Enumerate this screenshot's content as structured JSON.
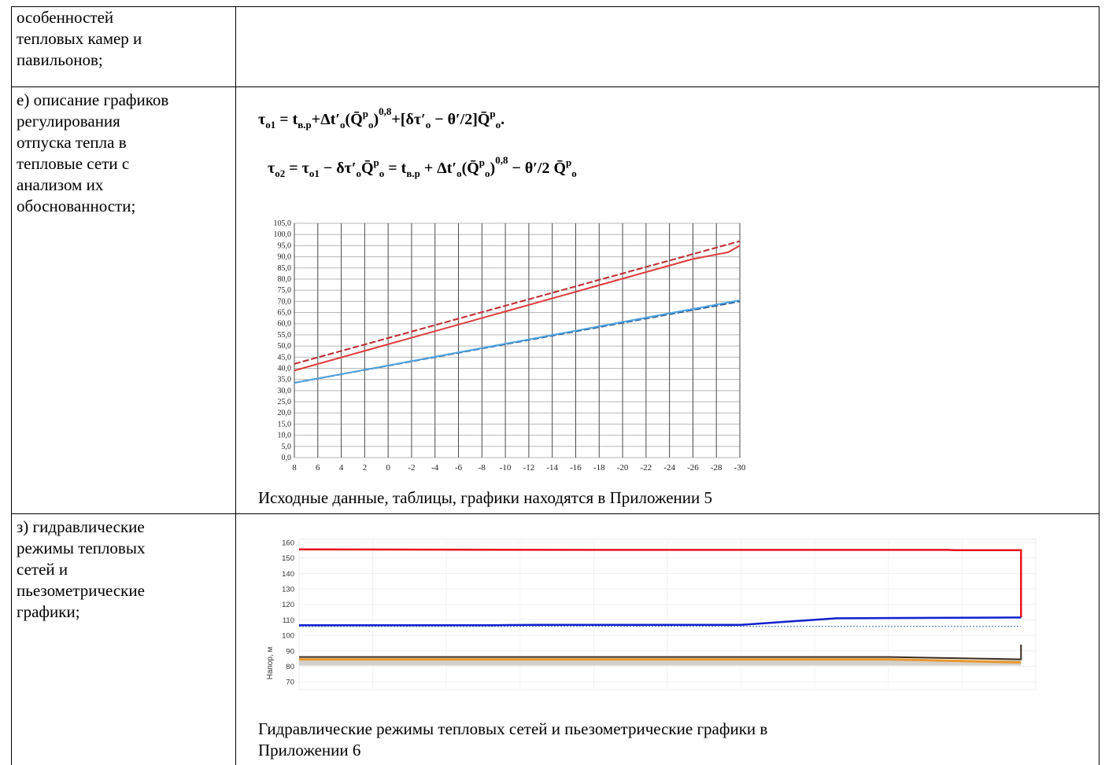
{
  "rows": [
    {
      "label_lines": [
        "особенностей",
        "тепловых камер и",
        "павильонов;"
      ]
    },
    {
      "label_lines": [
        "е) описание графиков",
        "регулирования",
        "отпуска тепла в",
        "тепловые сети с",
        "анализом их",
        "обоснованности;"
      ],
      "formula_1": "τ₀₁ = tв.р + Δt′₀(Q̄ᵖ₀)^0,8 + [δτ′₀ − θ′/2]Q̄ᵖ₀.",
      "formula_2": "τ₀₂ = τ₀₁ − δτ′₀Q̄ᵖ₀ = tв.р + Δt′₀(Q̄ᵖ₀)^0,8 − θ′/2 Q̄ᵖ₀",
      "caption": "Исходные данные, таблицы, графики находятся в Приложении 5"
    },
    {
      "label_lines": [
        "з) гидравлические",
        "режимы тепловых",
        "сетей и",
        "пьезометрические",
        "графики;"
      ],
      "caption_lines": [
        "Гидравлические режимы тепловых сетей и пьезометрические графики  в",
        "Приложении 6"
      ]
    }
  ],
  "chart_data": [
    {
      "type": "line",
      "title": "",
      "xlabel": "",
      "ylabel": "",
      "x": [
        8,
        6,
        4,
        2,
        0,
        -2,
        -4,
        -6,
        -8,
        -10,
        -12,
        -14,
        -16,
        -18,
        -20,
        -22,
        -24,
        -26,
        -28,
        -30
      ],
      "x_tick_labels": [
        "8",
        "6",
        "4",
        "2",
        "0",
        "-2",
        "-4",
        "-6",
        "-8",
        "-10",
        "-12",
        "-14",
        "-16",
        "-18",
        "-20",
        "-22",
        "-24",
        "-26",
        "-28",
        "-30"
      ],
      "y_tick_labels": [
        "0,0",
        "5,0",
        "10,0",
        "15,0",
        "20,0",
        "25,0",
        "30,0",
        "35,0",
        "40,0",
        "45,0",
        "50,0",
        "55,0",
        "60,0",
        "65,0",
        "70,0",
        "75,0",
        "80,0",
        "85,0",
        "90,0",
        "95,0",
        "100,0",
        "105,0"
      ],
      "ylim": [
        0,
        105
      ],
      "grid": true,
      "series": [
        {
          "color": "#c0282f",
          "dash": true,
          "points": [
            [
              8,
              42
            ],
            [
              -30,
              97
            ]
          ]
        },
        {
          "color": "#e03a3a",
          "dash": false,
          "points": [
            [
              8,
              39
            ],
            [
              -26,
              89
            ],
            [
              -28,
              91
            ],
            [
              -29,
              92
            ],
            [
              -30,
              95
            ]
          ]
        },
        {
          "color": "#1f4e8c",
          "dash": true,
          "points": [
            [
              8,
              33.5
            ],
            [
              -30,
              70
            ]
          ]
        },
        {
          "color": "#4fa3e0",
          "dash": false,
          "points": [
            [
              8,
              33.5
            ],
            [
              -30,
              70.5
            ]
          ]
        }
      ]
    },
    {
      "type": "line",
      "title": "",
      "xlabel": "",
      "ylabel": "Напор, м",
      "y_tick_labels": [
        "70",
        "80",
        "90",
        "100",
        "110",
        "120",
        "130",
        "140",
        "150",
        "160"
      ],
      "ylim": [
        65,
        162
      ],
      "xlim": [
        0,
        100
      ],
      "grid": true,
      "series": [
        {
          "color": "#e8101c",
          "width": 2.5,
          "points": [
            [
              0,
              155.5
            ],
            [
              40,
              155.2
            ],
            [
              88,
              155.2
            ],
            [
              89,
              155
            ],
            [
              98,
              155
            ],
            [
              98,
              111.5
            ]
          ]
        },
        {
          "color": "#1020d0",
          "width": 2.5,
          "points": [
            [
              0,
              106.5
            ],
            [
              26,
              106.5
            ],
            [
              32,
              106.8
            ],
            [
              60,
              106.8
            ],
            [
              73,
              111
            ],
            [
              98,
              111.5
            ]
          ]
        },
        {
          "color": "#3a6ea8",
          "width": 1,
          "dash": true,
          "points": [
            [
              0,
              105.8
            ],
            [
              98,
              105.8
            ]
          ]
        },
        {
          "color": "#3a2a20",
          "width": 2,
          "points": [
            [
              0,
              86
            ],
            [
              80,
              86
            ],
            [
              98,
              84.5
            ],
            [
              98,
              94
            ]
          ]
        },
        {
          "color": "#e89830",
          "width": 3,
          "points": [
            [
              0,
              84.5
            ],
            [
              80,
              84.5
            ],
            [
              98,
              82.5
            ]
          ]
        }
      ]
    }
  ]
}
